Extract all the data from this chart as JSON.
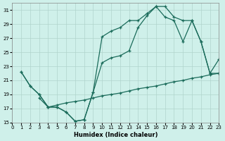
{
  "xlabel": "Humidex (Indice chaleur)",
  "bg_color": "#cff0ea",
  "grid_color": "#b0d4cc",
  "line_color": "#1a6b5a",
  "xlim": [
    0,
    23
  ],
  "ylim": [
    15,
    32
  ],
  "yticks": [
    15,
    17,
    19,
    21,
    23,
    25,
    27,
    29,
    31
  ],
  "upper_x": [
    1,
    2,
    3,
    4,
    5,
    6,
    7,
    8,
    9,
    10,
    11,
    12,
    13,
    14,
    15,
    16,
    17,
    18,
    19,
    20,
    21,
    22,
    23
  ],
  "upper_y": [
    22.2,
    20.2,
    19.0,
    17.2,
    17.2,
    16.5,
    15.2,
    15.4,
    19.3,
    27.2,
    28.0,
    28.5,
    29.5,
    29.5,
    30.5,
    31.5,
    31.5,
    30.0,
    29.5,
    29.5,
    26.5,
    22.0,
    22.0
  ],
  "middle_x": [
    1,
    2,
    3,
    4,
    5,
    6,
    7,
    8,
    9,
    10,
    11,
    12,
    13,
    14,
    15,
    16,
    17,
    18,
    19,
    20,
    21,
    22,
    23
  ],
  "middle_y": [
    22.2,
    20.2,
    19.0,
    17.2,
    17.2,
    16.5,
    15.2,
    15.4,
    19.3,
    23.5,
    24.2,
    24.5,
    25.2,
    28.5,
    30.2,
    31.5,
    30.0,
    29.5,
    26.5,
    29.5,
    26.5,
    22.0,
    24.0
  ],
  "lower_x": [
    3,
    4,
    5,
    6,
    7,
    8,
    9,
    10,
    11,
    12,
    13,
    14,
    15,
    16,
    17,
    18,
    19,
    20,
    21,
    22,
    23
  ],
  "lower_y": [
    18.5,
    17.2,
    17.5,
    17.8,
    18.0,
    18.2,
    18.5,
    18.8,
    19.0,
    19.2,
    19.5,
    19.8,
    20.0,
    20.2,
    20.5,
    20.8,
    21.0,
    21.3,
    21.5,
    21.8,
    22.0
  ]
}
